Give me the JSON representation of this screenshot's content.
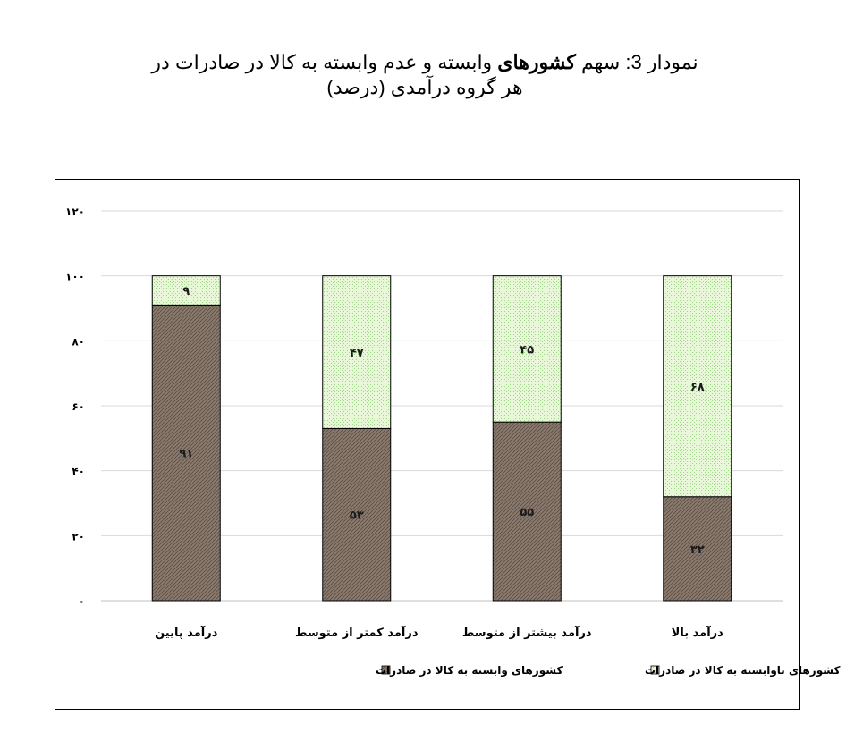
{
  "title": {
    "prefix": "نمودار 3:  سهم ",
    "bold": "کشورهای",
    "rest": " وابسته و عدم وابسته به کالا در صادرات در",
    "line2": "هر گروه درآمدی (درصد)"
  },
  "colors": {
    "dependent": "#8b7b6f",
    "non_dependent": "#e7f7d8",
    "non_dependent_dot": "#9fd68a",
    "grid": "#d9d9d9"
  },
  "chart_data": {
    "type": "bar",
    "stacked": true,
    "categories": [
      "درآمد پایین",
      "درآمد کمتر از متوسط",
      "درآمد بیشتر از متوسط",
      "درآمد بالا"
    ],
    "series": [
      {
        "name": "کشورهای وابسته به کالا در صادرات",
        "values": [
          91,
          53,
          55,
          32
        ],
        "labels": [
          "۹۱",
          "۵۳",
          "۵۵",
          "۳۲"
        ]
      },
      {
        "name": "کشورهای ناوابسته به کالا در صادرات",
        "values": [
          9,
          47,
          45,
          68
        ],
        "labels": [
          "۹",
          "۴۷",
          "۴۵",
          "۶۸"
        ]
      }
    ],
    "yticks": [
      0,
      20,
      40,
      60,
      80,
      100,
      120
    ],
    "ytick_labels": [
      "۰",
      "۲۰",
      "۴۰",
      "۶۰",
      "۸۰",
      "۱۰۰",
      "۱۲۰"
    ],
    "ylim": [
      0,
      120
    ],
    "grid": true,
    "legend": "bottom"
  }
}
